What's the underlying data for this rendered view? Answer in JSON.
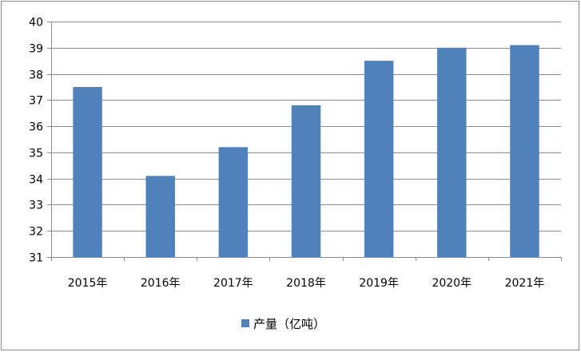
{
  "chart_data": {
    "type": "bar",
    "categories": [
      "2015年",
      "2016年",
      "2017年",
      "2018年",
      "2019年",
      "2020年",
      "2021年"
    ],
    "series": [
      {
        "name": "产量（亿吨）",
        "values": [
          37.5,
          34.1,
          35.2,
          36.8,
          38.5,
          39.0,
          39.1
        ],
        "color": "#4f81bd"
      }
    ],
    "ylim": [
      31,
      40
    ],
    "yticks": [
      31,
      32,
      33,
      34,
      35,
      36,
      37,
      38,
      39,
      40
    ],
    "grid": true,
    "legend_position": "bottom"
  }
}
